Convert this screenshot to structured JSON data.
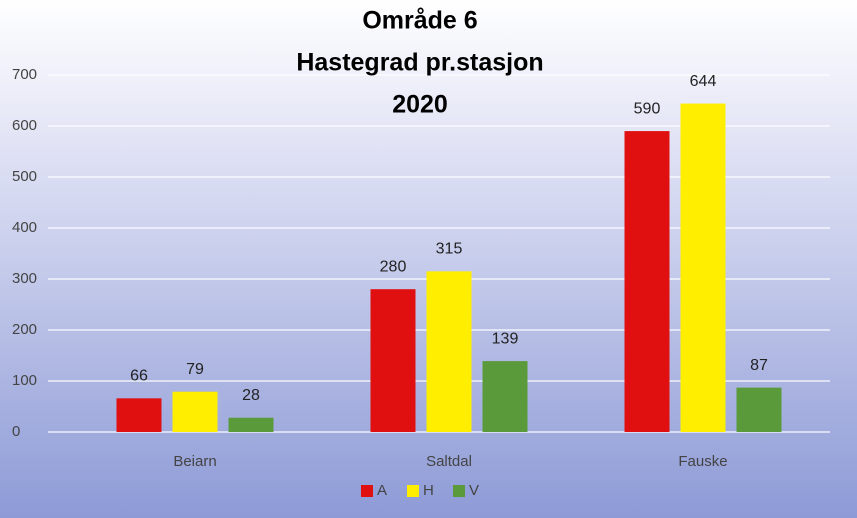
{
  "chart_data": {
    "type": "bar",
    "title": [
      "Område 6",
      "Hastegrad pr.stasjon",
      "2020"
    ],
    "categories": [
      "Beiarn",
      "Saltdal",
      "Fauske"
    ],
    "series": [
      {
        "name": "A",
        "color": "#e01010",
        "values": [
          66,
          280,
          590
        ]
      },
      {
        "name": "H",
        "color": "#ffee00",
        "values": [
          79,
          315,
          644
        ]
      },
      {
        "name": "V",
        "color": "#5a9a3a",
        "values": [
          28,
          139,
          87
        ]
      }
    ],
    "ylim": [
      0,
      700
    ],
    "yticks": [
      0,
      100,
      200,
      300,
      400,
      500,
      600,
      700
    ],
    "grid": true,
    "legend": "bottom"
  }
}
